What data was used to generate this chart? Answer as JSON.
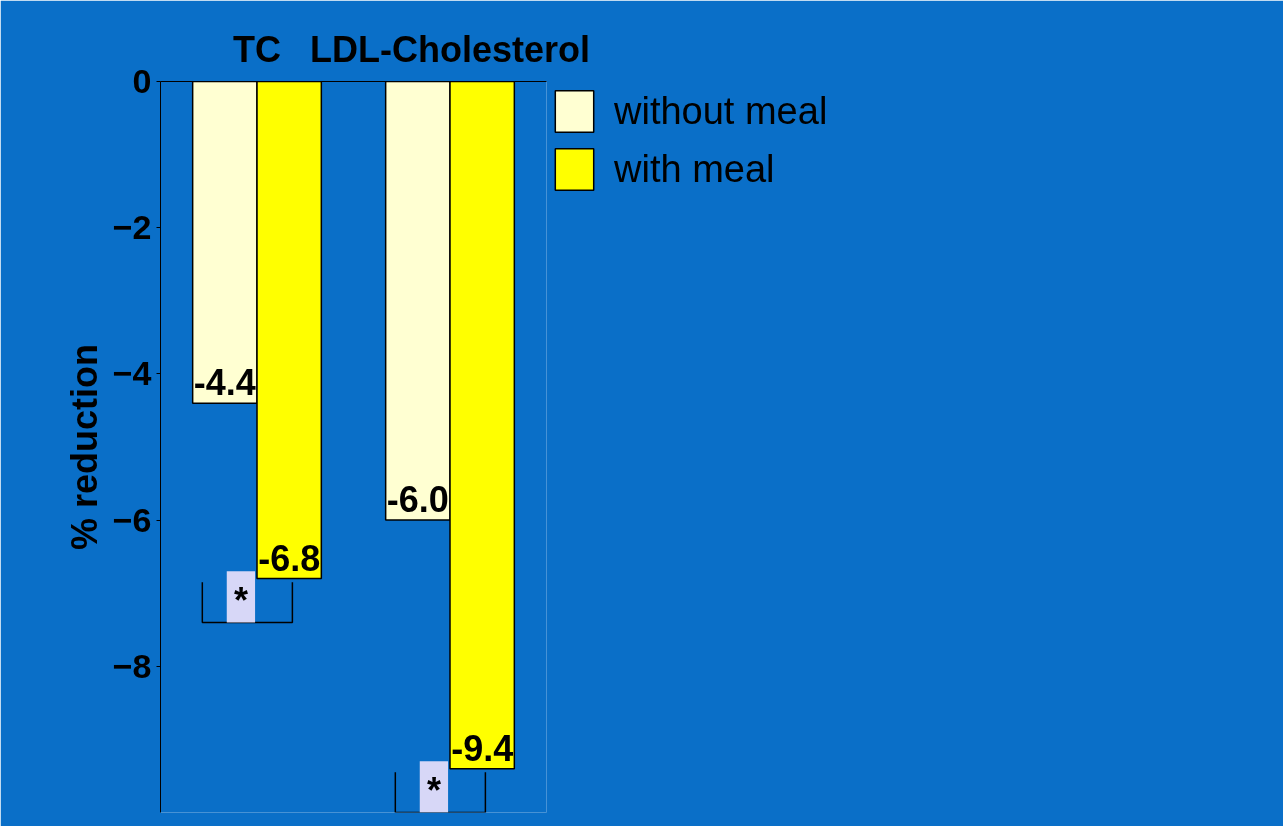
{
  "chart_data": {
    "type": "bar",
    "categories": [
      "TC",
      "LDL-Cholesterol"
    ],
    "ylabel": "% reduction",
    "series": [
      {
        "name": "without meal",
        "color": "#ffffd2",
        "values": [
          -4.4,
          -6.0
        ],
        "value_labels": [
          "-4.4",
          "-6.0"
        ]
      },
      {
        "name": "with meal",
        "color": "#ffff00",
        "values": [
          -6.8,
          -9.4
        ],
        "value_labels": [
          "-6.8",
          "-9.4"
        ]
      }
    ],
    "ylim": [
      -10,
      0
    ],
    "yticks": [
      0,
      -2,
      -4,
      -6,
      -8
    ],
    "legend": "right",
    "grid": false,
    "annotations": [
      "*",
      "*"
    ]
  }
}
